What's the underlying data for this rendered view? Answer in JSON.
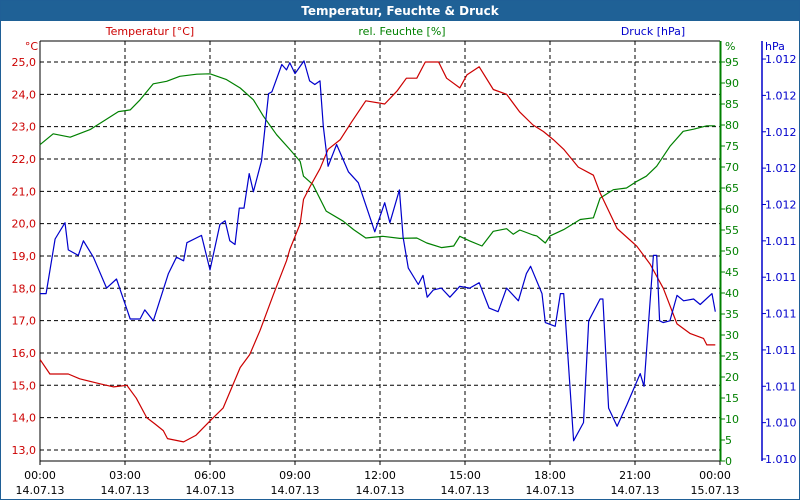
{
  "window": {
    "title": "Temperatur, Feuchte & Druck"
  },
  "colors": {
    "temperature": "#cc0000",
    "humidity": "#008000",
    "pressure": "#0000cc",
    "titlebar": "#1f6196",
    "grid": "#000000"
  },
  "chart_data": {
    "type": "line",
    "title": "Temperatur, Feuchte & Druck",
    "grid": true,
    "x": {
      "range": [
        "14.07.13 00:00",
        "15.07.13 00:00"
      ],
      "ticks": [
        {
          "time": "00:00",
          "date": "14.07.13"
        },
        {
          "time": "03:00",
          "date": "14.07.13"
        },
        {
          "time": "06:00",
          "date": "14.07.13"
        },
        {
          "time": "09:00",
          "date": "14.07.13"
        },
        {
          "time": "12:00",
          "date": "14.07.13"
        },
        {
          "time": "15:00",
          "date": "14.07.13"
        },
        {
          "time": "18:00",
          "date": "14.07.13"
        },
        {
          "time": "21:00",
          "date": "14.07.13"
        },
        {
          "time": "00:00",
          "date": "15.07.13"
        }
      ]
    },
    "axes": {
      "temperature": {
        "label": "Temperatur [°C]",
        "unit": "°C",
        "side": "left",
        "ticks": [
          "25,0",
          "24,0",
          "23,0",
          "22,0",
          "21,0",
          "20,0",
          "19,0",
          "18,0",
          "17,0",
          "16,0",
          "15,0",
          "14,0",
          "13,0"
        ],
        "tick_values": [
          25,
          24,
          23,
          22,
          21,
          20,
          19,
          18,
          17,
          16,
          15,
          14,
          13
        ]
      },
      "humidity": {
        "label": "rel. Feuchte [%]",
        "unit": "%",
        "side": "right",
        "ylim": [
          0,
          100
        ],
        "ticks": [
          "95",
          "90",
          "85",
          "80",
          "75",
          "70",
          "65",
          "60",
          "55",
          "50",
          "45",
          "40",
          "35",
          "30",
          "25",
          "20",
          "15",
          "10",
          "5",
          "0"
        ]
      },
      "pressure": {
        "label": "Druck [hPa]",
        "unit": "hPa",
        "side": "right-outer",
        "ticks": [
          "1.012",
          "1.012",
          "1.012",
          "1.012",
          "1.012",
          "1.011",
          "1.011",
          "1.011",
          "1.011",
          "1.011",
          "1.010",
          "1.010"
        ],
        "tick_values": [
          1.0124,
          1.0122,
          1.012,
          1.0118,
          1.0116,
          1.0114,
          1.0112,
          1.011,
          1.0108,
          1.0106,
          1.0104,
          1.0102
        ]
      }
    },
    "series": [
      {
        "name": "Temperatur [°C]",
        "axis": "temperature",
        "color": "#cc0000",
        "points": [
          [
            "00:00",
            15.8
          ],
          [
            "00:21",
            15.35
          ],
          [
            "01:00",
            15.35
          ],
          [
            "01:24",
            15.2
          ],
          [
            "02:06",
            15.05
          ],
          [
            "02:36",
            14.95
          ],
          [
            "03:04",
            15.0
          ],
          [
            "03:24",
            14.6
          ],
          [
            "03:46",
            14.0
          ],
          [
            "04:04",
            13.8
          ],
          [
            "04:21",
            13.6
          ],
          [
            "04:30",
            13.35
          ],
          [
            "05:04",
            13.25
          ],
          [
            "05:30",
            13.45
          ],
          [
            "06:00",
            13.9
          ],
          [
            "06:28",
            14.3
          ],
          [
            "07:04",
            15.55
          ],
          [
            "07:24",
            15.95
          ],
          [
            "07:46",
            16.7
          ],
          [
            "08:14",
            17.8
          ],
          [
            "08:42",
            18.85
          ],
          [
            "08:49",
            19.2
          ],
          [
            "09:11",
            20.0
          ],
          [
            "09:18",
            20.75
          ],
          [
            "09:32",
            21.15
          ],
          [
            "09:53",
            21.7
          ],
          [
            "10:10",
            22.3
          ],
          [
            "10:36",
            22.6
          ],
          [
            "11:00",
            23.15
          ],
          [
            "11:30",
            23.8
          ],
          [
            "12:10",
            23.7
          ],
          [
            "12:36",
            24.1
          ],
          [
            "12:56",
            24.5
          ],
          [
            "13:18",
            24.5
          ],
          [
            "13:36",
            25.0
          ],
          [
            "14:04",
            25.0
          ],
          [
            "14:21",
            24.5
          ],
          [
            "14:49",
            24.2
          ],
          [
            "15:04",
            24.6
          ],
          [
            "15:30",
            24.85
          ],
          [
            "16:00",
            24.15
          ],
          [
            "16:28",
            24.0
          ],
          [
            "16:56",
            23.45
          ],
          [
            "17:24",
            23.05
          ],
          [
            "17:46",
            22.85
          ],
          [
            "18:07",
            22.6
          ],
          [
            "18:29",
            22.3
          ],
          [
            "19:00",
            21.75
          ],
          [
            "19:32",
            21.5
          ],
          [
            "19:46",
            20.95
          ],
          [
            "20:22",
            19.85
          ],
          [
            "21:04",
            19.3
          ],
          [
            "21:32",
            18.75
          ],
          [
            "22:00",
            18.0
          ],
          [
            "22:29",
            16.9
          ],
          [
            "22:57",
            16.6
          ],
          [
            "23:25",
            16.45
          ],
          [
            "23:32",
            16.25
          ],
          [
            "23:50",
            16.25
          ]
        ]
      },
      {
        "name": "rel. Feuchte [%]",
        "axis": "humidity",
        "color": "#008000",
        "points": [
          [
            "00:00",
            75.3
          ],
          [
            "00:28",
            77.9
          ],
          [
            "01:04",
            77.1
          ],
          [
            "01:46",
            78.9
          ],
          [
            "02:14",
            80.9
          ],
          [
            "02:46",
            83.2
          ],
          [
            "03:11",
            83.6
          ],
          [
            "03:32",
            86.0
          ],
          [
            "04:00",
            89.8
          ],
          [
            "04:28",
            90.4
          ],
          [
            "04:56",
            91.6
          ],
          [
            "05:32",
            92.1
          ],
          [
            "06:00",
            92.2
          ],
          [
            "06:35",
            90.8
          ],
          [
            "07:04",
            88.8
          ],
          [
            "07:32",
            86.0
          ],
          [
            "07:53",
            82.1
          ],
          [
            "08:21",
            77.7
          ],
          [
            "08:49",
            74.2
          ],
          [
            "09:11",
            71.3
          ],
          [
            "09:18",
            67.8
          ],
          [
            "09:38",
            65.8
          ],
          [
            "10:06",
            59.5
          ],
          [
            "10:42",
            57.1
          ],
          [
            "11:04",
            55.1
          ],
          [
            "11:30",
            53.1
          ],
          [
            "12:06",
            53.5
          ],
          [
            "12:42",
            53.0
          ],
          [
            "13:18",
            53.1
          ],
          [
            "13:39",
            51.9
          ],
          [
            "14:10",
            50.8
          ],
          [
            "14:36",
            51.2
          ],
          [
            "14:49",
            53.5
          ],
          [
            "15:10",
            52.4
          ],
          [
            "15:36",
            51.2
          ],
          [
            "16:00",
            54.7
          ],
          [
            "16:28",
            55.3
          ],
          [
            "16:42",
            54.0
          ],
          [
            "16:56",
            55.0
          ],
          [
            "17:24",
            53.8
          ],
          [
            "17:32",
            53.6
          ],
          [
            "17:50",
            51.9
          ],
          [
            "18:00",
            53.6
          ],
          [
            "18:29",
            55.1
          ],
          [
            "19:04",
            57.5
          ],
          [
            "19:32",
            57.9
          ],
          [
            "19:46",
            62.6
          ],
          [
            "20:14",
            64.6
          ],
          [
            "20:42",
            65.0
          ],
          [
            "21:04",
            66.6
          ],
          [
            "21:24",
            67.8
          ],
          [
            "21:46",
            70.2
          ],
          [
            "22:14",
            74.9
          ],
          [
            "22:42",
            78.5
          ],
          [
            "23:04",
            79.0
          ],
          [
            "23:32",
            79.8
          ],
          [
            "23:50",
            79.8
          ]
        ]
      },
      {
        "name": "Druck [hPa]",
        "axis": "pressure",
        "color": "#0000cc",
        "points": [
          [
            "00:00",
            1.01111
          ],
          [
            "00:13",
            1.01111
          ],
          [
            "00:32",
            1.01141
          ],
          [
            "00:53",
            1.0115
          ],
          [
            "01:00",
            1.01135
          ],
          [
            "01:21",
            1.01132
          ],
          [
            "01:32",
            1.0114
          ],
          [
            "01:53",
            1.01131
          ],
          [
            "02:21",
            1.01114
          ],
          [
            "02:42",
            1.01119
          ],
          [
            "03:11",
            1.01097
          ],
          [
            "03:32",
            1.01097
          ],
          [
            "03:42",
            1.01102
          ],
          [
            "04:00",
            1.01096
          ],
          [
            "04:32",
            1.01122
          ],
          [
            "04:49",
            1.01131
          ],
          [
            "05:04",
            1.01129
          ],
          [
            "05:11",
            1.01139
          ],
          [
            "05:42",
            1.01143
          ],
          [
            "06:00",
            1.01124
          ],
          [
            "06:21",
            1.01149
          ],
          [
            "06:32",
            1.01151
          ],
          [
            "06:42",
            1.0114
          ],
          [
            "06:53",
            1.01138
          ],
          [
            "07:02",
            1.01158
          ],
          [
            "07:12",
            1.01158
          ],
          [
            "07:23",
            1.01177
          ],
          [
            "07:32",
            1.01167
          ],
          [
            "07:49",
            1.01184
          ],
          [
            "08:04",
            1.01221
          ],
          [
            "08:11",
            1.01222
          ],
          [
            "08:32",
            1.01237
          ],
          [
            "08:42",
            1.01234
          ],
          [
            "08:49",
            1.01238
          ],
          [
            "09:00",
            1.01232
          ],
          [
            "09:19",
            1.01239
          ],
          [
            "09:31",
            1.01228
          ],
          [
            "09:42",
            1.01226
          ],
          [
            "09:53",
            1.01228
          ],
          [
            "10:00",
            1.01203
          ],
          [
            "10:10",
            1.01181
          ],
          [
            "10:28",
            1.01193
          ],
          [
            "10:53",
            1.01178
          ],
          [
            "11:14",
            1.01172
          ],
          [
            "11:49",
            1.01145
          ],
          [
            "12:10",
            1.01161
          ],
          [
            "12:21",
            1.0115
          ],
          [
            "12:41",
            1.01168
          ],
          [
            "12:49",
            1.01142
          ],
          [
            "13:00",
            1.01125
          ],
          [
            "13:21",
            1.01116
          ],
          [
            "13:31",
            1.01121
          ],
          [
            "13:40",
            1.01109
          ],
          [
            "13:53",
            1.01113
          ],
          [
            "14:10",
            1.01114
          ],
          [
            "14:28",
            1.01109
          ],
          [
            "14:49",
            1.01115
          ],
          [
            "15:10",
            1.01114
          ],
          [
            "15:30",
            1.01117
          ],
          [
            "15:51",
            1.01103
          ],
          [
            "16:10",
            1.01101
          ],
          [
            "16:28",
            1.01114
          ],
          [
            "16:53",
            1.01107
          ],
          [
            "17:10",
            1.01122
          ],
          [
            "17:19",
            1.01126
          ],
          [
            "17:43",
            1.01111
          ],
          [
            "17:50",
            1.01095
          ],
          [
            "18:11",
            1.01093
          ],
          [
            "18:22",
            1.01111
          ],
          [
            "18:29",
            1.01111
          ],
          [
            "18:50",
            1.0103
          ],
          [
            "19:11",
            1.0104
          ],
          [
            "19:22",
            1.01096
          ],
          [
            "19:46",
            1.01108
          ],
          [
            "19:52",
            1.01108
          ],
          [
            "20:04",
            1.01048
          ],
          [
            "20:22",
            1.01038
          ],
          [
            "20:43",
            1.0105
          ],
          [
            "21:11",
            1.01067
          ],
          [
            "21:19",
            1.0106
          ],
          [
            "21:39",
            1.01132
          ],
          [
            "21:46",
            1.01132
          ],
          [
            "21:52",
            1.01096
          ],
          [
            "22:00",
            1.01095
          ],
          [
            "22:14",
            1.01096
          ],
          [
            "22:29",
            1.0111
          ],
          [
            "22:43",
            1.01107
          ],
          [
            "23:04",
            1.01108
          ],
          [
            "23:18",
            1.01105
          ],
          [
            "23:43",
            1.01111
          ],
          [
            "23:50",
            1.01101
          ]
        ]
      }
    ]
  }
}
